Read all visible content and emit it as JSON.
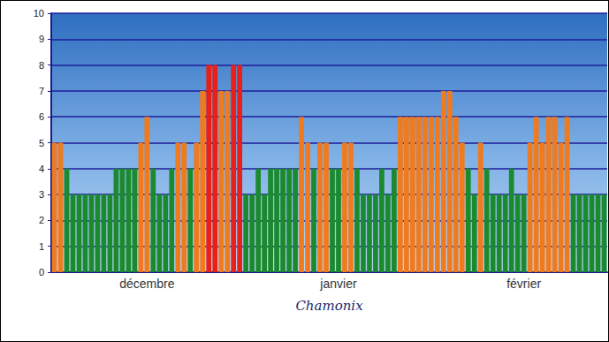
{
  "chart_data": {
    "type": "bar",
    "xlabel": "Chamonix",
    "categories": [
      null,
      null,
      null,
      null,
      null,
      null,
      null,
      null,
      null,
      null,
      null,
      null,
      null,
      null,
      null,
      "décembre",
      null,
      null,
      null,
      null,
      null,
      null,
      null,
      null,
      null,
      null,
      null,
      null,
      null,
      null,
      null,
      null,
      null,
      null,
      null,
      null,
      null,
      null,
      null,
      null,
      null,
      null,
      null,
      null,
      null,
      null,
      "janvier",
      null,
      null,
      null,
      null,
      null,
      null,
      null,
      null,
      null,
      null,
      null,
      null,
      null,
      null,
      null,
      null,
      null,
      null,
      null,
      null,
      null,
      null,
      null,
      null,
      null,
      null,
      null,
      null,
      null,
      "février",
      null,
      null,
      null,
      null,
      null,
      null,
      null,
      null,
      null,
      null,
      null,
      null,
      null
    ],
    "values": [
      5,
      5,
      4,
      3,
      3,
      3,
      3,
      3,
      3,
      3,
      4,
      4,
      4,
      4,
      5,
      6,
      4,
      3,
      3,
      4,
      5,
      5,
      4,
      5,
      7,
      8,
      8,
      7,
      7,
      8,
      8,
      3,
      3,
      4,
      3,
      4,
      4,
      4,
      4,
      4,
      6,
      5,
      4,
      5,
      5,
      4,
      4,
      5,
      5,
      4,
      3,
      3,
      3,
      4,
      3,
      4,
      6,
      6,
      6,
      6,
      6,
      6,
      6,
      7,
      7,
      6,
      5,
      4,
      3,
      5,
      4,
      3,
      3,
      3,
      4,
      3,
      3,
      5,
      6,
      5,
      6,
      6,
      5,
      6,
      3,
      3,
      3,
      3,
      3,
      3
    ],
    "colors": [
      "#f07a1e",
      "#f07a1e",
      "#1b8a2e",
      "#1b8a2e",
      "#1b8a2e",
      "#1b8a2e",
      "#1b8a2e",
      "#1b8a2e",
      "#1b8a2e",
      "#1b8a2e",
      "#1b8a2e",
      "#1b8a2e",
      "#1b8a2e",
      "#1b8a2e",
      "#f07a1e",
      "#f07a1e",
      "#1b8a2e",
      "#1b8a2e",
      "#1b8a2e",
      "#1b8a2e",
      "#f07a1e",
      "#f07a1e",
      "#1b8a2e",
      "#f07a1e",
      "#f07a1e",
      "#e8201a",
      "#e8201a",
      "#f07a1e",
      "#f07a1e",
      "#e8201a",
      "#e8201a",
      "#1b8a2e",
      "#1b8a2e",
      "#1b8a2e",
      "#1b8a2e",
      "#1b8a2e",
      "#1b8a2e",
      "#1b8a2e",
      "#1b8a2e",
      "#1b8a2e",
      "#f07a1e",
      "#f07a1e",
      "#1b8a2e",
      "#f07a1e",
      "#f07a1e",
      "#1b8a2e",
      "#1b8a2e",
      "#f07a1e",
      "#f07a1e",
      "#1b8a2e",
      "#1b8a2e",
      "#1b8a2e",
      "#1b8a2e",
      "#1b8a2e",
      "#1b8a2e",
      "#1b8a2e",
      "#f07a1e",
      "#f07a1e",
      "#f07a1e",
      "#f07a1e",
      "#f07a1e",
      "#f07a1e",
      "#f07a1e",
      "#f07a1e",
      "#f07a1e",
      "#f07a1e",
      "#f07a1e",
      "#1b8a2e",
      "#1b8a2e",
      "#f07a1e",
      "#1b8a2e",
      "#1b8a2e",
      "#1b8a2e",
      "#1b8a2e",
      "#1b8a2e",
      "#1b8a2e",
      "#1b8a2e",
      "#f07a1e",
      "#f07a1e",
      "#f07a1e",
      "#f07a1e",
      "#f07a1e",
      "#f07a1e",
      "#f07a1e",
      "#1b8a2e",
      "#1b8a2e",
      "#1b8a2e",
      "#1b8a2e",
      "#1b8a2e",
      "#1b8a2e"
    ],
    "ylim": [
      0,
      10
    ],
    "yticks": [
      0,
      1,
      2,
      3,
      4,
      5,
      6,
      7,
      8,
      9,
      10
    ],
    "grid": true
  }
}
